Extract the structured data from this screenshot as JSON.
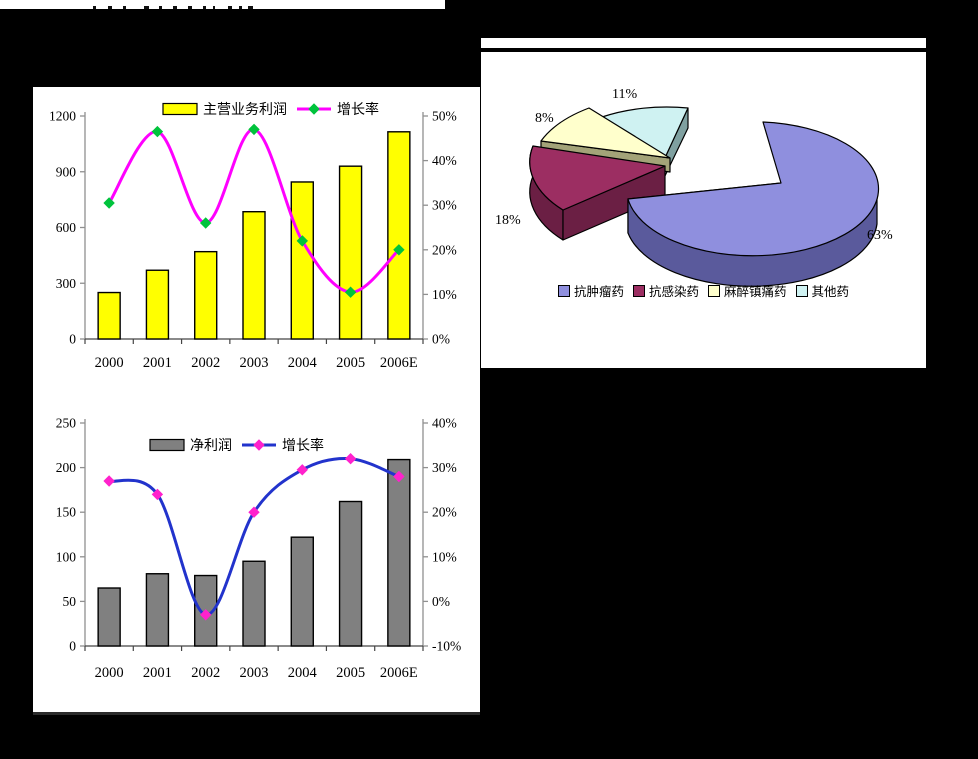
{
  "page": {
    "background": "#000000",
    "panel_background": "#ffffff"
  },
  "chart_data": [
    {
      "type": "bar",
      "subtype": "bar+line-combo",
      "categories": [
        "2000",
        "2001",
        "2002",
        "2003",
        "2004",
        "2005",
        "2006E"
      ],
      "series": [
        {
          "name": "主营业务利润",
          "type": "bar",
          "axis": "left",
          "color": "#FFFF00",
          "border": "#000000",
          "values": [
            250,
            370,
            470,
            685,
            845,
            930,
            1115
          ]
        },
        {
          "name": "增长率",
          "type": "line",
          "axis": "right",
          "color": "#FF00FF",
          "marker": "diamond",
          "marker_color": "#00C33C",
          "values_pct": [
            30.5,
            46.5,
            26,
            47,
            22,
            10.5,
            20
          ]
        }
      ],
      "left_axis": {
        "min": 0,
        "max": 1200,
        "tick_values": [
          0,
          300,
          600,
          900,
          1200
        ],
        "tick_labels": [
          "0",
          "300",
          "600",
          "900",
          "1200"
        ]
      },
      "right_axis": {
        "min": 0,
        "max": 50,
        "tick_values": [
          0,
          10,
          20,
          30,
          40,
          50
        ],
        "tick_labels": [
          "0%",
          "10%",
          "20%",
          "30%",
          "40%",
          "50%"
        ]
      },
      "grid": false,
      "legend_position": "top"
    },
    {
      "type": "bar",
      "subtype": "bar+line-combo",
      "categories": [
        "2000",
        "2001",
        "2002",
        "2003",
        "2004",
        "2005",
        "2006E"
      ],
      "series": [
        {
          "name": "净利润",
          "type": "bar",
          "axis": "left",
          "color": "#808080",
          "border": "#000000",
          "values": [
            65,
            81,
            79,
            95,
            122,
            162,
            209
          ]
        },
        {
          "name": "增长率",
          "type": "line",
          "axis": "right",
          "color": "#2233CC",
          "marker": "diamond",
          "marker_color": "#FF22CC",
          "values_pct": [
            27,
            24,
            -3,
            20,
            29.5,
            32,
            28
          ]
        }
      ],
      "left_axis": {
        "min": 0,
        "max": 250,
        "tick_values": [
          0,
          50,
          100,
          150,
          200,
          250
        ],
        "tick_labels": [
          "0",
          "50",
          "100",
          "150",
          "200",
          "250"
        ]
      },
      "right_axis": {
        "min": -10,
        "max": 40,
        "tick_values": [
          -10,
          0,
          10,
          20,
          30,
          40
        ],
        "tick_labels": [
          "-10%",
          "0%",
          "10%",
          "20%",
          "30%",
          "40%"
        ]
      },
      "grid": false,
      "legend_position": "top"
    },
    {
      "type": "pie",
      "subtype": "3d-exploded",
      "slices": [
        {
          "label": "抗肿瘤药",
          "value_pct": 63,
          "pct_label": "63%",
          "color": "#8F8FDE",
          "side_color": "#5A5A9C"
        },
        {
          "label": "抗感染药",
          "value_pct": 18,
          "pct_label": "18%",
          "color": "#9C2E62",
          "side_color": "#6B1F44"
        },
        {
          "label": "麻醉镇痛药",
          "value_pct": 8,
          "pct_label": "8%",
          "color": "#FFFFCC",
          "side_color": "#A3A378"
        },
        {
          "label": "其他药",
          "value_pct": 11,
          "pct_label": "11%",
          "color": "#CFF2F2",
          "side_color": "#7FA0A0"
        }
      ],
      "legend_position": "bottom"
    }
  ]
}
